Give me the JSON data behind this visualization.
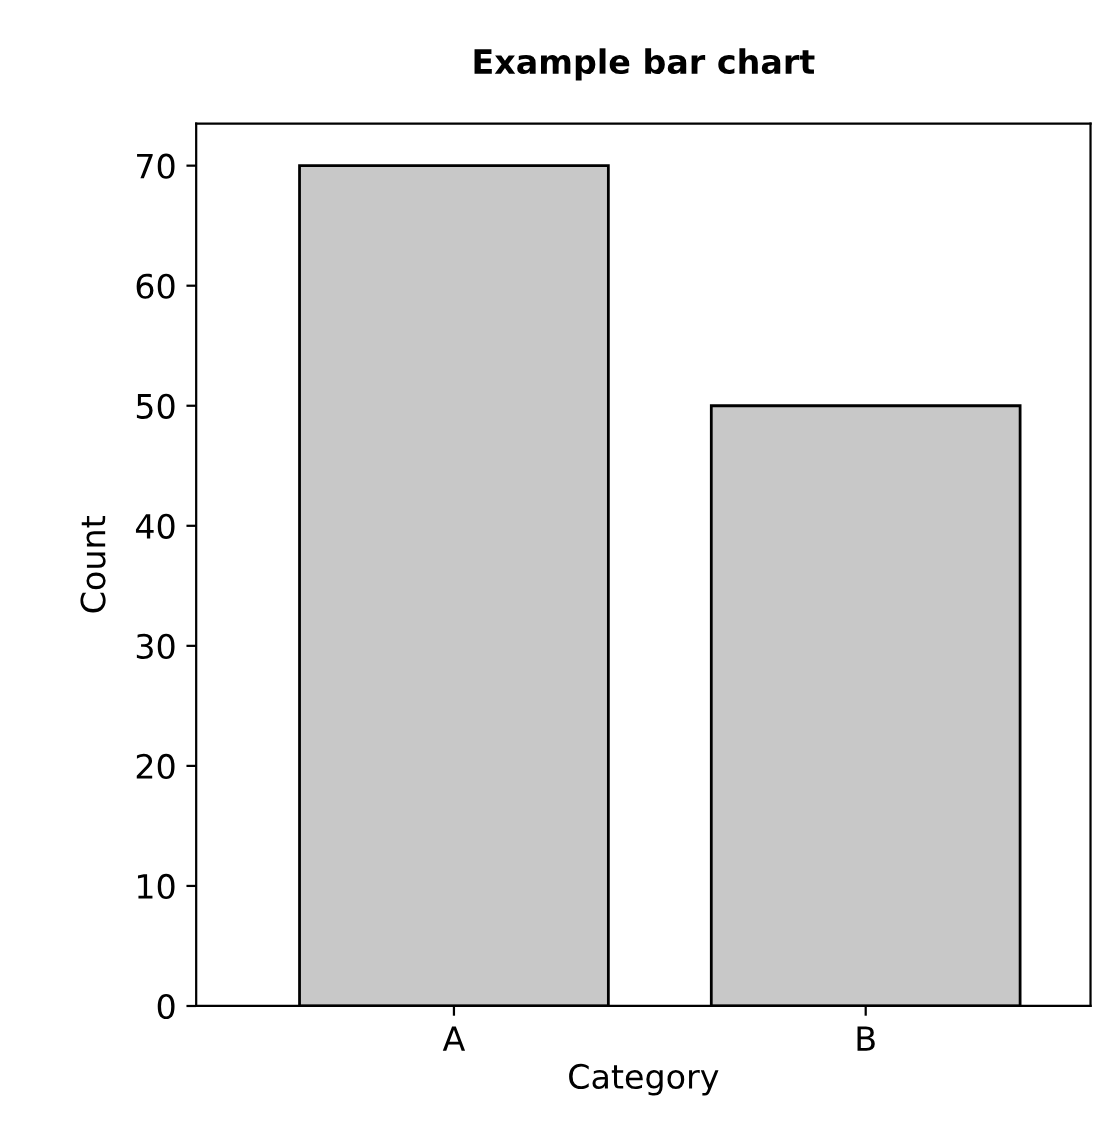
{
  "chart_data": {
    "type": "bar",
    "title": "Example bar chart",
    "xlabel": "Category",
    "ylabel": "Count",
    "categories": [
      "A",
      "B"
    ],
    "values": [
      70,
      50
    ],
    "color": "#c8c8c8",
    "ylim": [
      0,
      73.5
    ],
    "yticks": [
      0,
      10,
      20,
      30,
      40,
      50,
      60,
      70
    ],
    "grid": false,
    "legend": false
  }
}
